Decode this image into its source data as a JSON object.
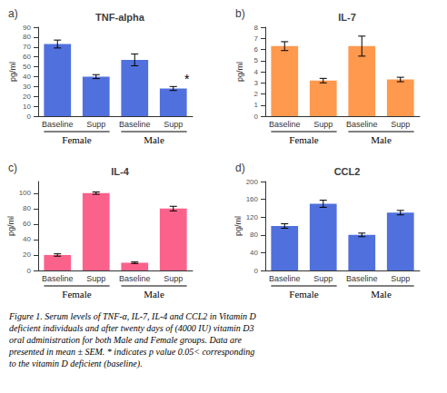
{
  "chart_data": [
    {
      "type": "bar",
      "panel_label": "a)",
      "title": "TNF-alpha",
      "ylabel": "pg/ml",
      "categories": [
        "Baseline",
        "Supp",
        "Baseline",
        "Supp"
      ],
      "group_labels": [
        "Female",
        "Female",
        "Male",
        "Male"
      ],
      "values": [
        73,
        40,
        57,
        28
      ],
      "errors": [
        4,
        2,
        6,
        2
      ],
      "annotations": [
        null,
        null,
        null,
        "*"
      ],
      "ylim": [
        0,
        90
      ],
      "yticks": [
        0,
        10,
        20,
        30,
        40,
        50,
        60,
        70,
        80,
        90
      ],
      "grid": false
    },
    {
      "type": "bar",
      "panel_label": "b)",
      "title": "IL-7",
      "ylabel": "pg/ml",
      "categories": [
        "Baseline",
        "Supp",
        "Baseline",
        "Supp"
      ],
      "group_labels": [
        "Female",
        "Female",
        "Male",
        "Male"
      ],
      "values": [
        6.3,
        3.2,
        6.3,
        3.3
      ],
      "errors": [
        0.4,
        0.2,
        0.9,
        0.2
      ],
      "ylim": [
        0,
        8
      ],
      "yticks": [
        0,
        1,
        2,
        3,
        4,
        5,
        6,
        7,
        8
      ],
      "grid": false
    },
    {
      "type": "bar",
      "panel_label": "c)",
      "title": "IL-4",
      "ylabel": "pg/ml",
      "categories": [
        "Baseline",
        "Supp",
        "Baseline",
        "Supp"
      ],
      "group_labels": [
        "Female",
        "Female",
        "Male",
        "Male"
      ],
      "values": [
        20,
        100,
        10,
        80
      ],
      "errors": [
        1.5,
        1.5,
        1.0,
        3
      ],
      "ylim": [
        0,
        115
      ],
      "yticks": [
        0,
        20,
        40,
        60,
        80,
        100
      ],
      "grid": false
    },
    {
      "type": "bar",
      "panel_label": "d)",
      "title": "CCL2",
      "ylabel": "pg/ml",
      "categories": [
        "Baseline",
        "Supp",
        "Baseline",
        "Supp"
      ],
      "group_labels": [
        "Female",
        "Female",
        "Male",
        "Male"
      ],
      "values": [
        100,
        150,
        80,
        130
      ],
      "errors": [
        5,
        8,
        4,
        5
      ],
      "ylim": [
        0,
        200
      ],
      "yticks": [
        0,
        40,
        80,
        120,
        160,
        200
      ],
      "grid": false
    }
  ],
  "caption": "Figure 1. Serum levels of TNF-α, IL-7, IL-4 and CCL2 in Vitamin D\ndeficient individuals and after twenty days of (4000 IU) vitamin D3\noral administration for both Male and Female groups. Data are\npresented in mean ± SEM. * indicates p value 0.05< corresponding\nto the vitamin D deficient (baseline)."
}
